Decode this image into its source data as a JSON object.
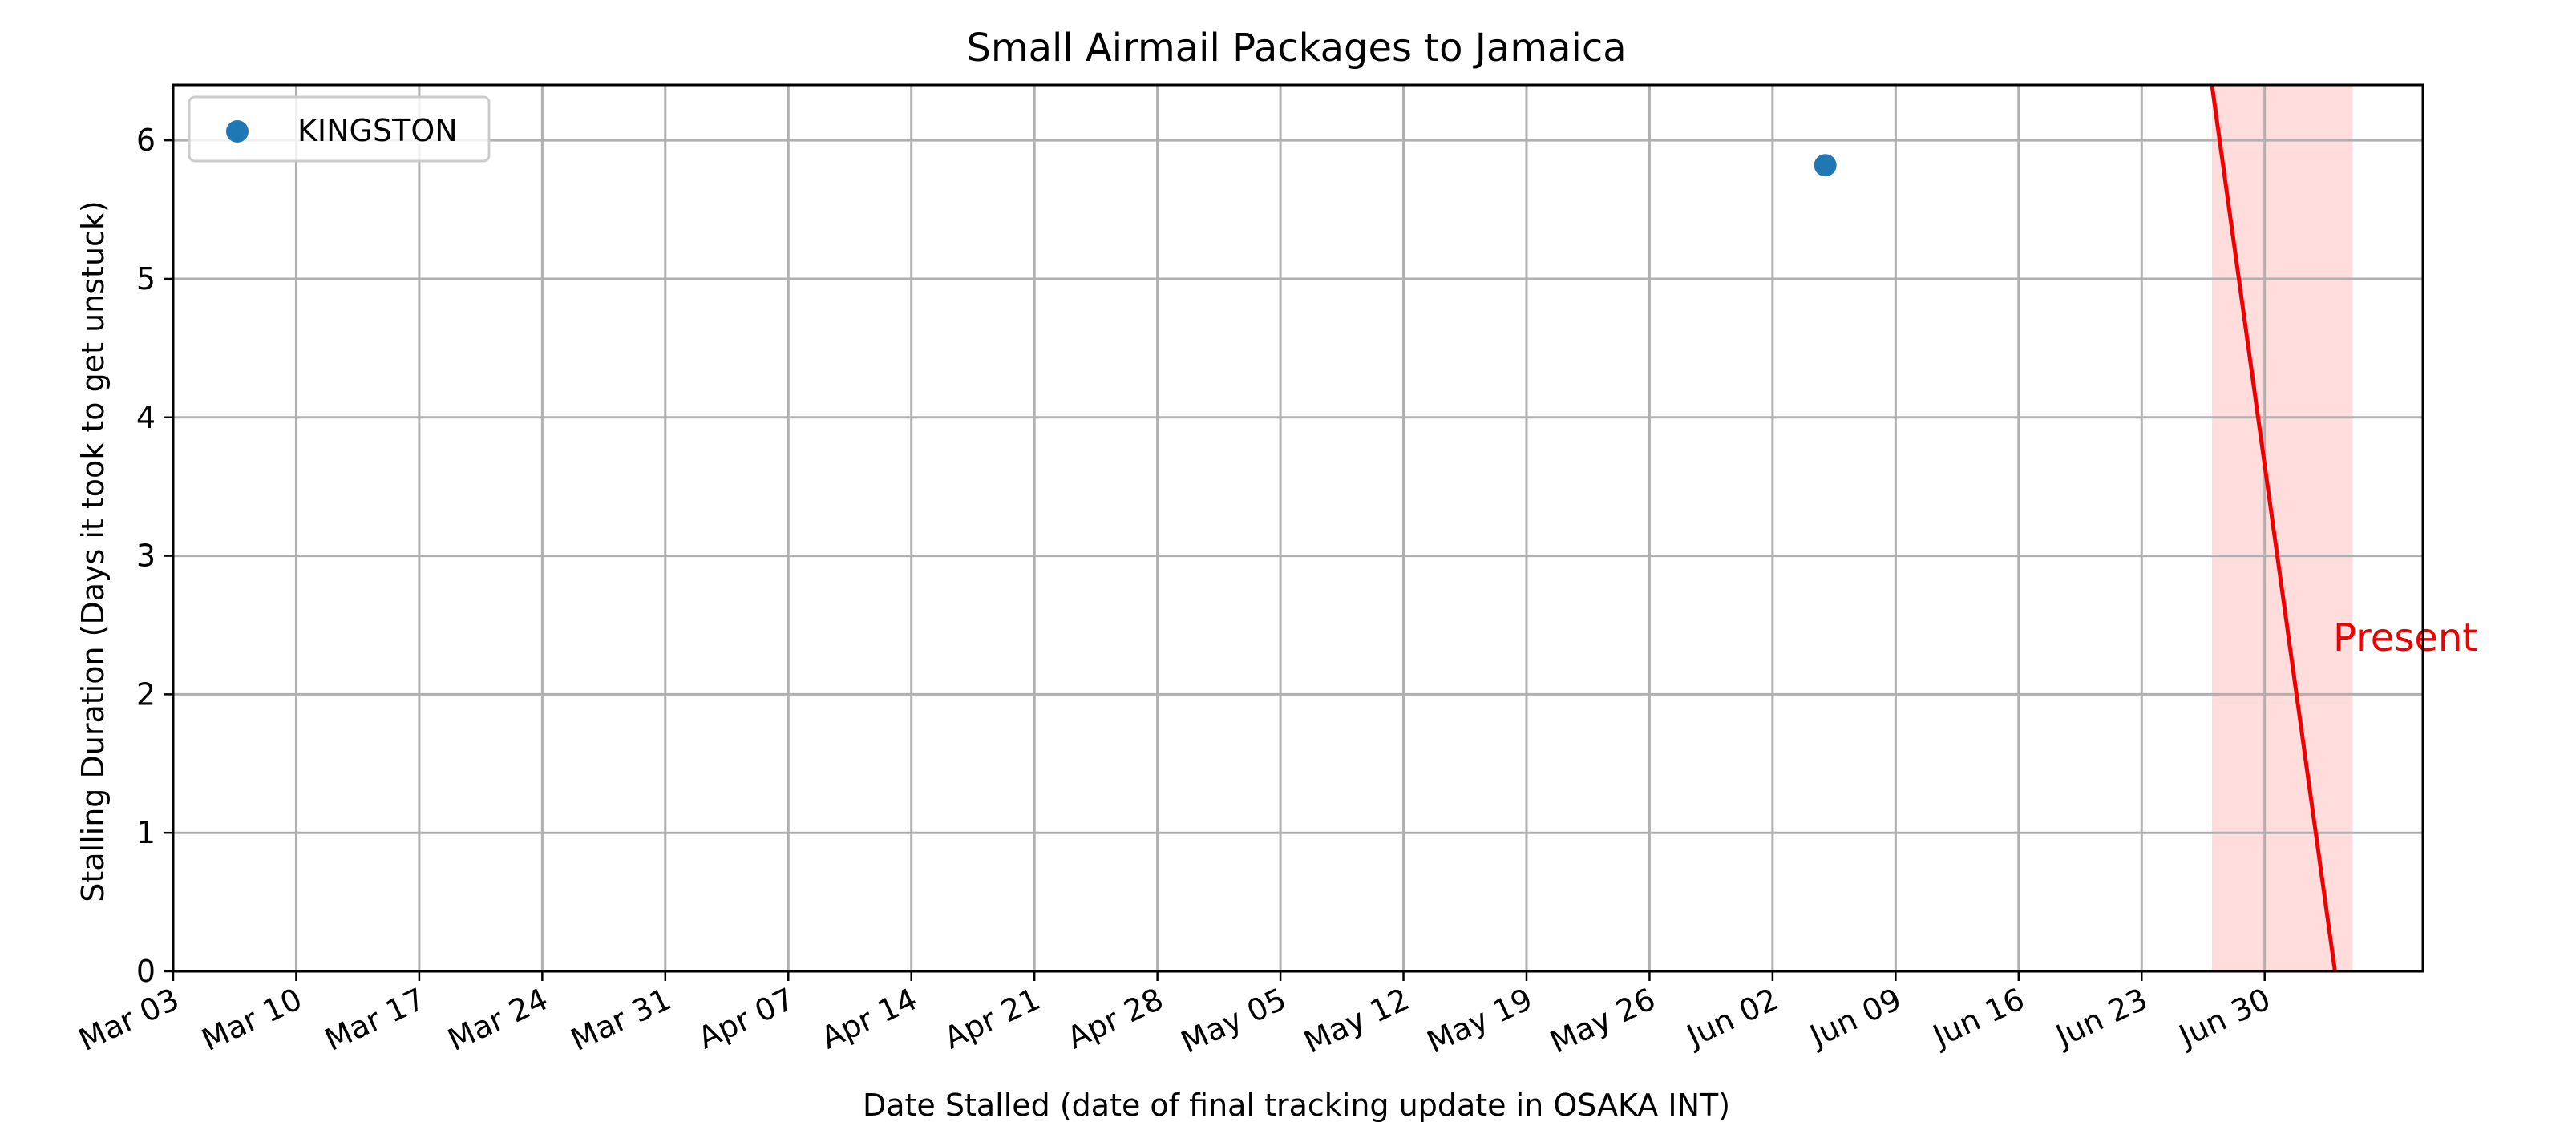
{
  "chart_data": {
    "type": "scatter",
    "title": "Small Airmail Packages to Jamaica",
    "xlabel": "Date Stalled (date of final tracking update in OSAKA INT)",
    "ylabel": "Stalling Duration (Days it took to get unstuck)",
    "x_type": "date",
    "x_ticks": [
      "Mar 03",
      "Mar 10",
      "Mar 17",
      "Mar 24",
      "Mar 31",
      "Apr 07",
      "Apr 14",
      "Apr 21",
      "Apr 28",
      "May 05",
      "May 12",
      "May 19",
      "May 26",
      "Jun 02",
      "Jun 09",
      "Jun 16",
      "Jun 23",
      "Jun 30"
    ],
    "y_ticks": [
      0,
      1,
      2,
      3,
      4,
      5,
      6
    ],
    "xlim": [
      "Mar 03",
      "Jul 09"
    ],
    "ylim": [
      0,
      6.4
    ],
    "grid": true,
    "legend_position": "top-left",
    "series": [
      {
        "name": "KINGSTON",
        "color": "#1f77b4",
        "points": [
          {
            "x": "Jun 05",
            "y": 5.82
          }
        ]
      }
    ],
    "present_line": {
      "label": "Present",
      "color": "#ee0000",
      "from": {
        "x": "Jun 27",
        "y": 6.4
      },
      "to": {
        "x": "Jul 04",
        "y": 0
      },
      "shade_to": "Jul 05",
      "shade_color": "#ffdddd"
    }
  }
}
